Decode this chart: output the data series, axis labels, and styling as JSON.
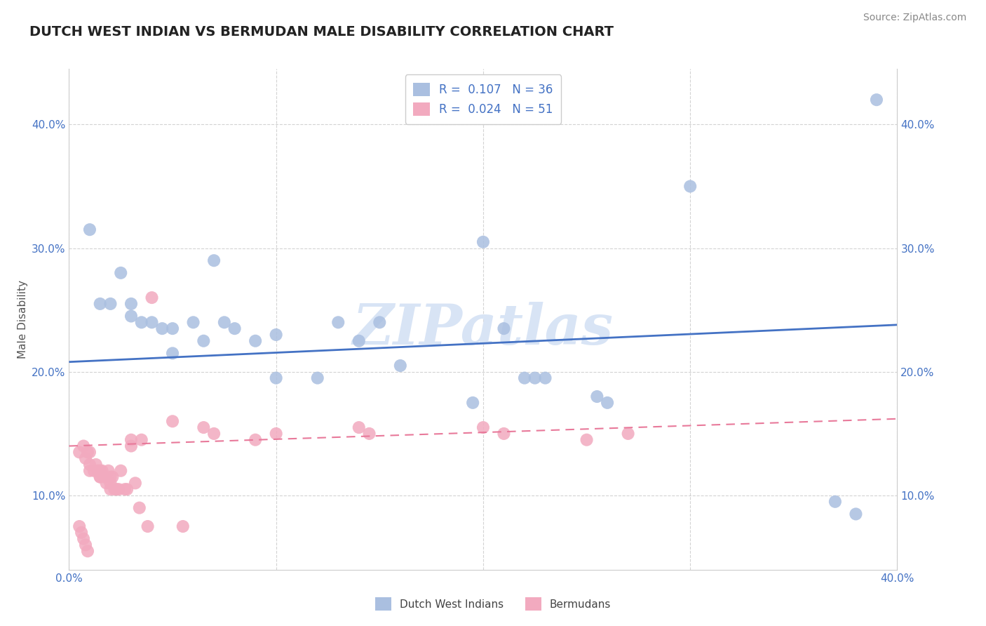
{
  "title": "DUTCH WEST INDIAN VS BERMUDAN MALE DISABILITY CORRELATION CHART",
  "source": "Source: ZipAtlas.com",
  "ylabel": "Male Disability",
  "legend_blue_r": "R =  0.107",
  "legend_blue_n": "N = 36",
  "legend_pink_r": "R =  0.024",
  "legend_pink_n": "N = 51",
  "legend_blue_label": "Dutch West Indians",
  "legend_pink_label": "Bermudans",
  "watermark": "ZIPatlas",
  "xlim": [
    0.0,
    0.4
  ],
  "ylim": [
    0.04,
    0.445
  ],
  "yticks": [
    0.1,
    0.2,
    0.3,
    0.4
  ],
  "ytick_labels": [
    "10.0%",
    "20.0%",
    "30.0%",
    "40.0%"
  ],
  "xticks": [
    0.0,
    0.1,
    0.2,
    0.3,
    0.4
  ],
  "xtick_labels_left": "0.0%",
  "xtick_labels_right": "40.0%",
  "blue_scatter_x": [
    0.01,
    0.015,
    0.02,
    0.025,
    0.03,
    0.03,
    0.035,
    0.04,
    0.045,
    0.05,
    0.05,
    0.06,
    0.065,
    0.07,
    0.075,
    0.08,
    0.09,
    0.1,
    0.1,
    0.12,
    0.13,
    0.14,
    0.15,
    0.16,
    0.2,
    0.21,
    0.22,
    0.225,
    0.23,
    0.3,
    0.37,
    0.38,
    0.39,
    0.255,
    0.26,
    0.195
  ],
  "blue_scatter_y": [
    0.315,
    0.255,
    0.255,
    0.28,
    0.255,
    0.245,
    0.24,
    0.24,
    0.235,
    0.235,
    0.215,
    0.24,
    0.225,
    0.29,
    0.24,
    0.235,
    0.225,
    0.23,
    0.195,
    0.195,
    0.24,
    0.225,
    0.24,
    0.205,
    0.305,
    0.235,
    0.195,
    0.195,
    0.195,
    0.35,
    0.095,
    0.085,
    0.42,
    0.18,
    0.175,
    0.175
  ],
  "pink_scatter_x": [
    0.005,
    0.007,
    0.008,
    0.009,
    0.01,
    0.01,
    0.01,
    0.012,
    0.013,
    0.014,
    0.015,
    0.015,
    0.015,
    0.016,
    0.017,
    0.018,
    0.019,
    0.02,
    0.02,
    0.02,
    0.021,
    0.022,
    0.023,
    0.024,
    0.025,
    0.027,
    0.028,
    0.03,
    0.03,
    0.032,
    0.034,
    0.035,
    0.038,
    0.04,
    0.05,
    0.055,
    0.065,
    0.07,
    0.09,
    0.1,
    0.14,
    0.145,
    0.2,
    0.21,
    0.25,
    0.27,
    0.005,
    0.006,
    0.007,
    0.008,
    0.009
  ],
  "pink_scatter_y": [
    0.135,
    0.14,
    0.13,
    0.135,
    0.135,
    0.125,
    0.12,
    0.12,
    0.125,
    0.12,
    0.115,
    0.115,
    0.12,
    0.12,
    0.115,
    0.11,
    0.12,
    0.105,
    0.11,
    0.115,
    0.115,
    0.105,
    0.105,
    0.105,
    0.12,
    0.105,
    0.105,
    0.14,
    0.145,
    0.11,
    0.09,
    0.145,
    0.075,
    0.26,
    0.16,
    0.075,
    0.155,
    0.15,
    0.145,
    0.15,
    0.155,
    0.15,
    0.155,
    0.15,
    0.145,
    0.15,
    0.075,
    0.07,
    0.065,
    0.06,
    0.055
  ],
  "blue_line_x0": 0.0,
  "blue_line_y0": 0.208,
  "blue_line_x1": 0.4,
  "blue_line_y1": 0.238,
  "pink_line_x0": 0.0,
  "pink_line_y0": 0.14,
  "pink_line_x1": 0.4,
  "pink_line_y1": 0.162,
  "blue_line_color": "#4472C4",
  "pink_line_color": "#E8799A",
  "blue_scatter_color": "#AABFE0",
  "pink_scatter_color": "#F2AABF",
  "grid_color": "#C8C8C8",
  "background_color": "#FFFFFF",
  "title_fontsize": 14,
  "axis_label_fontsize": 11,
  "tick_fontsize": 11,
  "source_fontsize": 10,
  "watermark_color": "#D8E4F5",
  "watermark_fontsize": 58
}
